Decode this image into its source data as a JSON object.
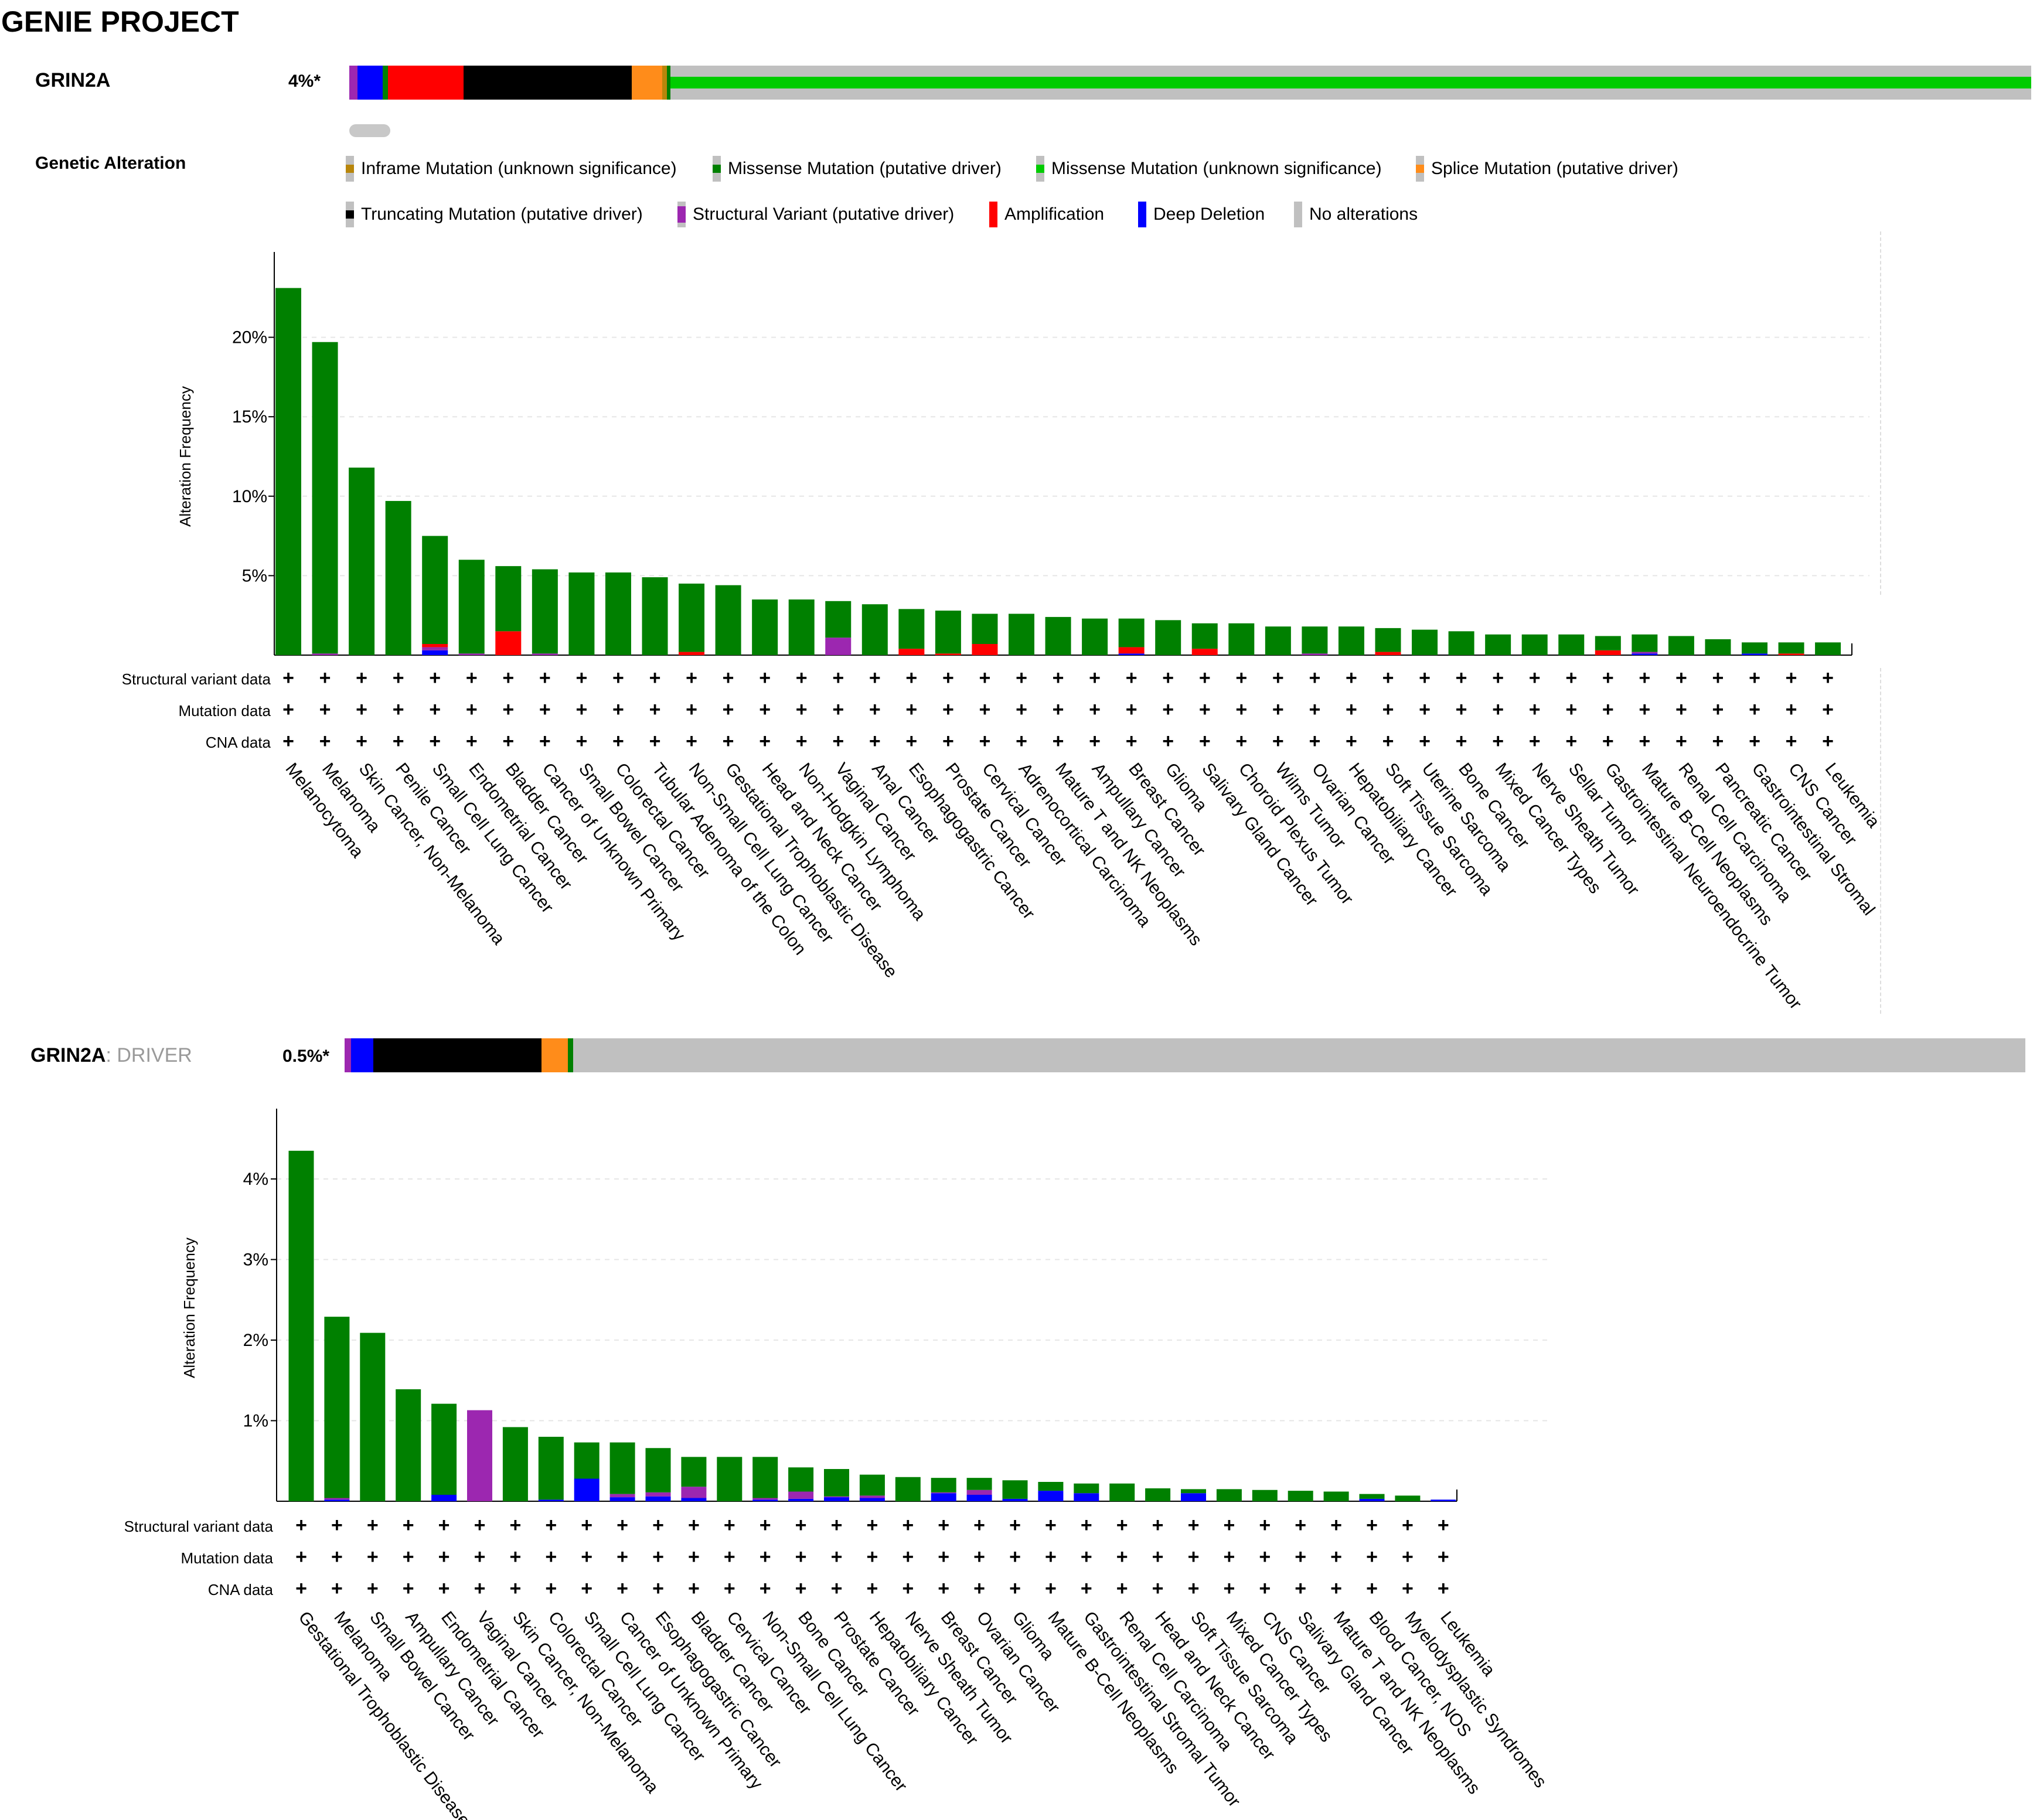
{
  "page_title": "GENIE PROJECT",
  "colors": {
    "inframe": "#b8860b",
    "missense_driver": "#008000",
    "missense_unknown": "#00cc00",
    "splice_driver": "#ff8c1a",
    "truncating_driver": "#000000",
    "structural_variant": "#9c27b0",
    "amplification": "#ff0000",
    "deep_deletion": "#0000ff",
    "no_alterations": "#c0c0c0"
  },
  "oncoprint": [
    {
      "gene": "GRIN2A",
      "suffix": "",
      "percent": "4%*",
      "segments": [
        {
          "type": "structural_variant",
          "fraction": 0.005
        },
        {
          "type": "deep_deletion",
          "fraction": 0.015
        },
        {
          "type": "missense_driver",
          "fraction": 0.003
        },
        {
          "type": "amplification",
          "fraction": 0.045
        },
        {
          "type": "truncating_driver",
          "fraction": 0.1
        },
        {
          "type": "splice_driver",
          "fraction": 0.018
        },
        {
          "type": "inframe",
          "fraction": 0.003
        },
        {
          "type": "missense_driver",
          "fraction": 0.002
        },
        {
          "type": "missense_unknown",
          "fraction": 0.809
        }
      ]
    },
    {
      "gene": "GRIN2A",
      "suffix": ": DRIVER",
      "percent": "0.5%*",
      "segments": [
        {
          "type": "structural_variant",
          "fraction": 0.004
        },
        {
          "type": "deep_deletion",
          "fraction": 0.013
        },
        {
          "type": "truncating_driver",
          "fraction": 0.1
        },
        {
          "type": "splice_driver",
          "fraction": 0.016
        },
        {
          "type": "missense_driver",
          "fraction": 0.003
        }
      ]
    }
  ],
  "legend": {
    "title": "Genetic Alteration",
    "items": [
      {
        "label": "Inframe Mutation (unknown significance)",
        "type": "inframe"
      },
      {
        "label": "Missense Mutation (putative driver)",
        "type": "missense_driver"
      },
      {
        "label": "Missense Mutation (unknown significance)",
        "type": "missense_unknown"
      },
      {
        "label": "Splice Mutation (putative driver)",
        "type": "splice_driver"
      },
      {
        "label": "Truncating Mutation (putative driver)",
        "type": "truncating_driver"
      },
      {
        "label": "Structural Variant (putative driver)",
        "type": "structural_variant"
      },
      {
        "label": "Amplification",
        "type": "amplification"
      },
      {
        "label": "Deep Deletion",
        "type": "deep_deletion"
      },
      {
        "label": "No alterations",
        "type": "no_alterations"
      }
    ]
  },
  "chart_data": [
    {
      "type": "bar",
      "stacked": true,
      "title": "",
      "xlabel": "",
      "ylabel": "Alteration Frequency",
      "ylim": [
        0,
        25
      ],
      "yticks": [
        5,
        10,
        15,
        20
      ],
      "ytick_labels": [
        "5%",
        "10%",
        "15%",
        "20%"
      ],
      "grid": true,
      "profile_rows": [
        "Structural variant data",
        "Mutation data",
        "CNA data"
      ],
      "profile_mark": "+",
      "categories": [
        "Melanocytoma",
        "Melanoma",
        "Skin Cancer, Non-Melanoma",
        "Penile Cancer",
        "Small Cell Lung Cancer",
        "Endometrial Cancer",
        "Bladder Cancer",
        "Cancer of Unknown Primary",
        "Small Bowel Cancer",
        "Colorectal Cancer",
        "Tubular Adenoma of the Colon",
        "Non-Small Cell Lung Cancer",
        "Gestational Trophoblastic Disease",
        "Head and Neck Cancer",
        "Non-Hodgkin Lymphoma",
        "Vaginal Cancer",
        "Anal Cancer",
        "Esophagogastric Cancer",
        "Prostate Cancer",
        "Cervical Cancer",
        "Adrenocortical Carcinoma",
        "Mature T and NK Neoplasms",
        "Ampullary Cancer",
        "Breast Cancer",
        "Glioma",
        "Salivary Gland Cancer",
        "Choroid Plexus Tumor",
        "Wilms Tumor",
        "Ovarian Cancer",
        "Hepatobiliary Cancer",
        "Soft Tissue Sarcoma",
        "Uterine Sarcoma",
        "Bone Cancer",
        "Mixed Cancer Types",
        "Nerve Sheath Tumor",
        "Sellar Tumor",
        "Gastrointestinal Neuroendocrine Tumor",
        "Mature B-Cell Neoplasms",
        "Renal Cell Carcinoma",
        "Pancreatic Cancer",
        "Gastrointestinal Stromal",
        "CNS Cancer",
        "Leukemia"
      ],
      "series": [
        {
          "name": "Deep Deletion",
          "type": "deep_deletion",
          "values": [
            0,
            0,
            0,
            0,
            0.3,
            0,
            0,
            0,
            0,
            0,
            0,
            0,
            0,
            0,
            0,
            0,
            0,
            0,
            0,
            0,
            0,
            0,
            0,
            0.1,
            0,
            0,
            0,
            0,
            0,
            0,
            0,
            0,
            0,
            0,
            0,
            0,
            0,
            0.1,
            0,
            0,
            0.1,
            0,
            0
          ]
        },
        {
          "name": "Structural Variant",
          "type": "structural_variant",
          "values": [
            0,
            0.1,
            0,
            0,
            0.2,
            0.1,
            0,
            0.1,
            0,
            0,
            0,
            0,
            0,
            0,
            0,
            1.1,
            0,
            0,
            0,
            0,
            0,
            0,
            0,
            0,
            0,
            0,
            0,
            0,
            0.1,
            0,
            0,
            0,
            0,
            0,
            0,
            0,
            0,
            0.1,
            0,
            0,
            0,
            0,
            0
          ]
        },
        {
          "name": "Amplification",
          "type": "amplification",
          "values": [
            0,
            0,
            0,
            0,
            0.2,
            0,
            1.5,
            0,
            0,
            0,
            0,
            0.2,
            0,
            0,
            0,
            0,
            0,
            0.4,
            0.1,
            0.7,
            0,
            0,
            0,
            0.4,
            0,
            0.4,
            0,
            0,
            0,
            0,
            0.2,
            0,
            0,
            0,
            0,
            0,
            0.3,
            0,
            0,
            0,
            0,
            0.1,
            0
          ]
        },
        {
          "name": "Mutation",
          "type": "missense_driver",
          "values": [
            23.1,
            19.6,
            11.8,
            9.7,
            6.8,
            5.9,
            4.1,
            5.3,
            5.2,
            5.2,
            4.9,
            4.3,
            4.4,
            3.5,
            3.5,
            2.3,
            3.2,
            2.5,
            2.7,
            1.9,
            2.6,
            2.4,
            2.3,
            1.8,
            2.2,
            1.6,
            2.0,
            1.8,
            1.7,
            1.8,
            1.5,
            1.6,
            1.5,
            1.3,
            1.3,
            1.3,
            0.9,
            1.1,
            1.2,
            1.0,
            0.7,
            0.7,
            0.8
          ]
        }
      ]
    },
    {
      "type": "bar",
      "stacked": true,
      "title": "",
      "xlabel": "",
      "ylabel": "Alteration Frequency",
      "ylim": [
        0,
        4.8
      ],
      "yticks": [
        1,
        2,
        3,
        4
      ],
      "ytick_labels": [
        "1%",
        "2%",
        "3%",
        "4%"
      ],
      "grid": true,
      "profile_rows": [
        "Structural variant data",
        "Mutation data",
        "CNA data"
      ],
      "profile_mark": "+",
      "categories": [
        "Gestational Trophoblastic Disease",
        "Melanoma",
        "Small Bowel Cancer",
        "Ampullary Cancer",
        "Endometrial Cancer",
        "Vaginal Cancer",
        "Skin Cancer, Non-Melanoma",
        "Colorectal Cancer",
        "Small Cell Lung Cancer",
        "Cancer of Unknown Primary",
        "Esophagogastric Cancer",
        "Bladder Cancer",
        "Cervical Cancer",
        "Non-Small Cell Lung Cancer",
        "Bone Cancer",
        "Prostate Cancer",
        "Hepatobiliary Cancer",
        "Nerve Sheath Tumor",
        "Breast Cancer",
        "Ovarian Cancer",
        "Glioma",
        "Mature B-Cell Neoplasms",
        "Gastrointestinal Stromal Tumor",
        "Renal Cell Carcinoma",
        "Head and Neck Cancer",
        "Soft Tissue Sarcoma",
        "Mixed Cancer Types",
        "CNS Cancer",
        "Salivary Gland Cancer",
        "Mature T and NK Neoplasms",
        "Blood Cancer, NOS",
        "Myelodysplastic Syndromes",
        "Leukemia"
      ],
      "series": [
        {
          "name": "Deep Deletion",
          "type": "deep_deletion",
          "values": [
            0,
            0.02,
            0,
            0,
            0.08,
            0,
            0,
            0.02,
            0.28,
            0.05,
            0.06,
            0.04,
            0,
            0.02,
            0.03,
            0.05,
            0.04,
            0,
            0.1,
            0.08,
            0.03,
            0.13,
            0.1,
            0,
            0,
            0.1,
            0,
            0,
            0,
            0,
            0.03,
            0,
            0.02
          ]
        },
        {
          "name": "Structural Variant",
          "type": "structural_variant",
          "values": [
            0,
            0.02,
            0,
            0,
            0,
            1.13,
            0,
            0,
            0,
            0.04,
            0.05,
            0.14,
            0,
            0.02,
            0.09,
            0.01,
            0.03,
            0,
            0.01,
            0.06,
            0,
            0,
            0,
            0,
            0,
            0,
            0,
            0,
            0,
            0,
            0,
            0,
            0
          ]
        },
        {
          "name": "Mutation",
          "type": "missense_driver",
          "values": [
            4.35,
            2.25,
            2.09,
            1.39,
            1.13,
            0,
            0.92,
            0.78,
            0.45,
            0.64,
            0.55,
            0.37,
            0.55,
            0.51,
            0.3,
            0.34,
            0.26,
            0.3,
            0.18,
            0.15,
            0.23,
            0.11,
            0.12,
            0.22,
            0.16,
            0.05,
            0.15,
            0.14,
            0.13,
            0.12,
            0.06,
            0.07,
            0
          ]
        }
      ]
    }
  ]
}
